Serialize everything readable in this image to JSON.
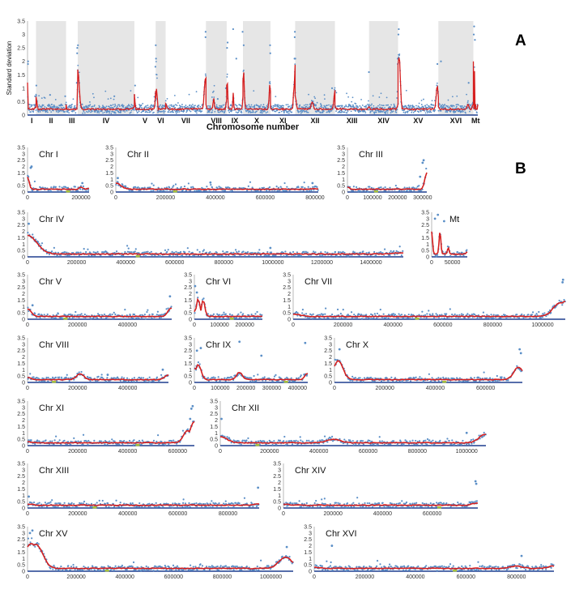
{
  "panel_labels": {
    "a": "A",
    "b": "B"
  },
  "overview": {
    "ylabel": "Standard deviation",
    "xlabel": "Chromosome number",
    "y_ticks": [
      "0",
      "0.5",
      "1",
      "1.5",
      "2",
      "2.5",
      "3",
      "3.5"
    ],
    "chromosomes": [
      "I",
      "II",
      "III",
      "IV",
      "V",
      "VI",
      "VII",
      "VIII",
      "IX",
      "X",
      "XI",
      "XII",
      "XIII",
      "XIV",
      "XV",
      "XVI",
      "Mt"
    ]
  },
  "colors": {
    "points": "#5b8fc7",
    "trend": "#d62020",
    "centromere": "#a8c23a",
    "band": "#e6e6e6",
    "axis": "#1f3f8f"
  },
  "chart_data": [
    {
      "type": "scatter",
      "title": "Chr I",
      "xmax": 230218,
      "x_ticks": [
        "0",
        "200000"
      ],
      "y_ticks": [
        "0",
        "0.5",
        "1",
        "1.5",
        "2",
        "2.5",
        "3",
        "3.5"
      ],
      "ylim": [
        0,
        3.5
      ],
      "centromere": 151500,
      "peaks": [
        {
          "x": 0,
          "y": 1.2
        },
        {
          "x": 200000,
          "y": 0.4
        },
        {
          "x": 230218,
          "y": 0.3
        }
      ],
      "outliers": [
        {
          "x": 12000,
          "y": 1.9
        },
        {
          "x": 15000,
          "y": 2.0
        },
        {
          "x": 205000,
          "y": 0.7
        }
      ]
    },
    {
      "type": "scatter",
      "title": "Chr II",
      "xmax": 813184,
      "x_ticks": [
        "0",
        "200000",
        "400000",
        "600000",
        "800000"
      ],
      "y_ticks": [
        "0",
        "0.5",
        "1",
        "1.5",
        "2",
        "2.5",
        "3",
        "3.5"
      ],
      "ylim": [
        0,
        3.5
      ],
      "centromere": 238200,
      "peaks": [
        {
          "x": 0,
          "y": 0.7
        },
        {
          "x": 813184,
          "y": 0.25
        }
      ],
      "outliers": [
        {
          "x": 8000,
          "y": 1.1
        },
        {
          "x": 380000,
          "y": 0.75
        },
        {
          "x": 790000,
          "y": 0.7
        }
      ]
    },
    {
      "type": "scatter",
      "title": "Chr III",
      "xmax": 316620,
      "x_ticks": [
        "0",
        "100000",
        "200000",
        "300000"
      ],
      "y_ticks": [
        "0",
        "0.5",
        "1",
        "1.5",
        "2",
        "2.5",
        "3",
        "3.5"
      ],
      "ylim": [
        0,
        3.5
      ],
      "centromere": 114400,
      "peaks": [
        {
          "x": 0,
          "y": 0.4
        },
        {
          "x": 316620,
          "y": 1.5
        }
      ],
      "outliers": [
        {
          "x": 300000,
          "y": 2.3
        },
        {
          "x": 304000,
          "y": 2.5
        },
        {
          "x": 290000,
          "y": 1.2
        }
      ]
    },
    {
      "type": "scatter",
      "title": "Chr IV",
      "xmax": 1531933,
      "x_ticks": [
        "0",
        "200000",
        "400000",
        "600000",
        "800000",
        "1000000",
        "1200000",
        "1400000"
      ],
      "y_ticks": [
        "0",
        "0.5",
        "1",
        "1.5",
        "2",
        "2.5",
        "3",
        "3.5"
      ],
      "ylim": [
        0,
        3.5
      ],
      "centromere": 449700,
      "peaks": [
        {
          "x": 0,
          "y": 1.7
        },
        {
          "x": 1531933,
          "y": 0.3
        }
      ],
      "outliers": [
        {
          "x": 5000,
          "y": 2.6
        },
        {
          "x": 40000,
          "y": 1.2
        },
        {
          "x": 990000,
          "y": 0.7
        }
      ]
    },
    {
      "type": "scatter",
      "title": "Mt",
      "xmax": 85779,
      "x_ticks": [
        "0",
        "50000"
      ],
      "y_ticks": [
        "0",
        "0.5",
        "1",
        "1.5",
        "2",
        "2.5",
        "3",
        "3.5"
      ],
      "ylim": [
        0,
        3.5
      ],
      "centromere": null,
      "peaks": [
        {
          "x": 0,
          "y": 2.0
        },
        {
          "x": 20000,
          "y": 2.0
        },
        {
          "x": 40000,
          "y": 0.7
        },
        {
          "x": 85779,
          "y": 0.4
        }
      ],
      "outliers": [
        {
          "x": 8000,
          "y": 3.0
        },
        {
          "x": 15000,
          "y": 3.3
        },
        {
          "x": 30000,
          "y": 2.8
        }
      ]
    },
    {
      "type": "scatter",
      "title": "Chr V",
      "xmax": 576874,
      "x_ticks": [
        "0",
        "200000",
        "400000"
      ],
      "y_ticks": [
        "0",
        "0.5",
        "1",
        "1.5",
        "2",
        "2.5",
        "3",
        "3.5"
      ],
      "ylim": [
        0,
        3.5
      ],
      "centromere": 151900,
      "peaks": [
        {
          "x": 0,
          "y": 0.8
        },
        {
          "x": 576874,
          "y": 0.9
        }
      ],
      "outliers": [
        {
          "x": 570000,
          "y": 1.8
        },
        {
          "x": 20000,
          "y": 1.1
        }
      ]
    },
    {
      "type": "scatter",
      "title": "Chr VI",
      "xmax": 270161,
      "x_ticks": [
        "0",
        "100000",
        "200000"
      ],
      "y_ticks": [
        "0",
        "0.5",
        "1",
        "1.5",
        "2",
        "2.5",
        "3",
        "3.5"
      ],
      "ylim": [
        0,
        3.5
      ],
      "centromere": 148500,
      "peaks": [
        {
          "x": 0,
          "y": 0.6
        },
        {
          "x": 15000,
          "y": 1.6
        },
        {
          "x": 35000,
          "y": 1.5
        },
        {
          "x": 270161,
          "y": 0.2
        }
      ],
      "outliers": [
        {
          "x": 10000,
          "y": 2.1
        },
        {
          "x": 3000,
          "y": 2.6
        }
      ]
    },
    {
      "type": "scatter",
      "title": "Chr VII",
      "xmax": 1090940,
      "x_ticks": [
        "0",
        "200000",
        "400000",
        "600000",
        "800000",
        "1000000"
      ],
      "y_ticks": [
        "0",
        "0.5",
        "1",
        "1.5",
        "2",
        "2.5",
        "3",
        "3.5"
      ],
      "ylim": [
        0,
        3.5
      ],
      "centromere": 496900,
      "peaks": [
        {
          "x": 0,
          "y": 0.4
        },
        {
          "x": 1070000,
          "y": 1.3
        },
        {
          "x": 1090940,
          "y": 1.4
        }
      ],
      "outliers": [
        {
          "x": 1080000,
          "y": 2.9
        },
        {
          "x": 1082000,
          "y": 3.1
        }
      ]
    },
    {
      "type": "scatter",
      "title": "Chr VIII",
      "xmax": 562643,
      "x_ticks": [
        "0",
        "200000",
        "400000"
      ],
      "y_ticks": [
        "0",
        "0.5",
        "1",
        "1.5",
        "2",
        "2.5",
        "3",
        "3.5"
      ],
      "ylim": [
        0,
        3.5
      ],
      "centromere": 105600,
      "peaks": [
        {
          "x": 0,
          "y": 0.4
        },
        {
          "x": 210000,
          "y": 0.7
        },
        {
          "x": 562643,
          "y": 0.6
        }
      ],
      "outliers": [
        {
          "x": 540000,
          "y": 1.0
        },
        {
          "x": 320000,
          "y": 0.6
        }
      ]
    },
    {
      "type": "scatter",
      "title": "Chr IX",
      "xmax": 439888,
      "x_ticks": [
        "0",
        "100000",
        "200000",
        "300000",
        "400000"
      ],
      "y_ticks": [
        "0",
        "0.5",
        "1",
        "1.5",
        "2",
        "2.5",
        "3",
        "3.5"
      ],
      "ylim": [
        0,
        3.5
      ],
      "centromere": 355600,
      "peaks": [
        {
          "x": 0,
          "y": 1.1
        },
        {
          "x": 15000,
          "y": 1.4
        },
        {
          "x": 175000,
          "y": 0.8
        },
        {
          "x": 439888,
          "y": 0.7
        }
      ],
      "outliers": [
        {
          "x": 10000,
          "y": 2.5
        },
        {
          "x": 25000,
          "y": 2.7
        },
        {
          "x": 175000,
          "y": 3.2
        },
        {
          "x": 260000,
          "y": 2.1
        },
        {
          "x": 430000,
          "y": 3.1
        }
      ]
    },
    {
      "type": "scatter",
      "title": "Chr X",
      "xmax": 745751,
      "x_ticks": [
        "0",
        "200000",
        "400000",
        "600000"
      ],
      "y_ticks": [
        "0",
        "0.5",
        "1",
        "1.5",
        "2",
        "2.5",
        "3",
        "3.5"
      ],
      "ylim": [
        0,
        3.5
      ],
      "centromere": 436300,
      "peaks": [
        {
          "x": 0,
          "y": 1.1
        },
        {
          "x": 15000,
          "y": 1.7
        },
        {
          "x": 730000,
          "y": 1.2
        },
        {
          "x": 745751,
          "y": 0.9
        }
      ],
      "outliers": [
        {
          "x": 20000,
          "y": 2.6
        },
        {
          "x": 735000,
          "y": 2.6
        },
        {
          "x": 740000,
          "y": 2.3
        }
      ]
    },
    {
      "type": "scatter",
      "title": "Chr XI",
      "xmax": 666816,
      "x_ticks": [
        "0",
        "200000",
        "400000",
        "600000"
      ],
      "y_ticks": [
        "0",
        "0.5",
        "1",
        "1.5",
        "2",
        "2.5",
        "3",
        "3.5"
      ],
      "ylim": [
        0,
        3.5
      ],
      "centromere": 440100,
      "peaks": [
        {
          "x": 0,
          "y": 0.3
        },
        {
          "x": 640000,
          "y": 1.2
        },
        {
          "x": 666816,
          "y": 1.9
        }
      ],
      "outliers": [
        {
          "x": 655000,
          "y": 2.9
        },
        {
          "x": 660000,
          "y": 3.1
        },
        {
          "x": 650000,
          "y": 2.1
        }
      ]
    },
    {
      "type": "scatter",
      "title": "Chr XII",
      "xmax": 1078177,
      "x_ticks": [
        "0",
        "200000",
        "400000",
        "600000",
        "800000",
        "1000000"
      ],
      "y_ticks": [
        "0",
        "0.5",
        "1",
        "1.5",
        "2",
        "2.5",
        "3",
        "3.5"
      ],
      "ylim": [
        0,
        3.5
      ],
      "centromere": 150900,
      "peaks": [
        {
          "x": 0,
          "y": 0.7
        },
        {
          "x": 460000,
          "y": 0.5
        },
        {
          "x": 1078177,
          "y": 0.9
        }
      ],
      "outliers": [
        {
          "x": 5000,
          "y": 2.1
        },
        {
          "x": 1000000,
          "y": 1.0
        }
      ]
    },
    {
      "type": "scatter",
      "title": "Chr XIII",
      "xmax": 924431,
      "x_ticks": [
        "0",
        "200000",
        "400000",
        "600000",
        "800000"
      ],
      "y_ticks": [
        "0",
        "0.5",
        "1",
        "1.5",
        "2",
        "2.5",
        "3",
        "3.5"
      ],
      "ylim": [
        0,
        3.5
      ],
      "centromere": 268000,
      "peaks": [
        {
          "x": 0,
          "y": 0.3
        },
        {
          "x": 924431,
          "y": 0.3
        }
      ],
      "outliers": [
        {
          "x": 920000,
          "y": 1.6
        },
        {
          "x": 5000,
          "y": 0.9
        }
      ]
    },
    {
      "type": "scatter",
      "title": "Chr XIV",
      "xmax": 784333,
      "x_ticks": [
        "0",
        "200000",
        "400000",
        "600000"
      ],
      "y_ticks": [
        "0",
        "0.5",
        "1",
        "1.5",
        "2",
        "2.5",
        "3",
        "3.5"
      ],
      "ylim": [
        0,
        3.5
      ],
      "centromere": 628800,
      "peaks": [
        {
          "x": 0,
          "y": 0.3
        },
        {
          "x": 784333,
          "y": 0.4
        }
      ],
      "outliers": [
        {
          "x": 775000,
          "y": 2.1
        },
        {
          "x": 778000,
          "y": 1.9
        }
      ]
    },
    {
      "type": "scatter",
      "title": "Chr XV",
      "xmax": 1091291,
      "x_ticks": [
        "0",
        "200000",
        "400000",
        "600000",
        "800000",
        "1000000"
      ],
      "y_ticks": [
        "0",
        "0.5",
        "1",
        "1.5",
        "2",
        "2.5",
        "3",
        "3.5"
      ],
      "ylim": [
        0,
        3.5
      ],
      "centromere": 326600,
      "peaks": [
        {
          "x": 0,
          "y": 1.3
        },
        {
          "x": 15000,
          "y": 2.2
        },
        {
          "x": 35000,
          "y": 2.1
        },
        {
          "x": 60000,
          "y": 0.4
        },
        {
          "x": 1060000,
          "y": 1.1
        },
        {
          "x": 1091291,
          "y": 0.3
        }
      ],
      "outliers": [
        {
          "x": 10000,
          "y": 3.0
        },
        {
          "x": 20000,
          "y": 3.2
        },
        {
          "x": 1065000,
          "y": 1.9
        }
      ]
    },
    {
      "type": "scatter",
      "title": "Chr XVI",
      "xmax": 948066,
      "x_ticks": [
        "0",
        "200000",
        "400000",
        "600000",
        "800000"
      ],
      "y_ticks": [
        "0",
        "0.5",
        "1",
        "1.5",
        "2",
        "2.5",
        "3",
        "3.5"
      ],
      "ylim": [
        0,
        3.5
      ],
      "centromere": 555900,
      "peaks": [
        {
          "x": 0,
          "y": 0.3
        },
        {
          "x": 800000,
          "y": 0.4
        },
        {
          "x": 948066,
          "y": 0.4
        }
      ],
      "outliers": [
        {
          "x": 70000,
          "y": 2.0
        },
        {
          "x": 820000,
          "y": 1.2
        }
      ]
    }
  ]
}
